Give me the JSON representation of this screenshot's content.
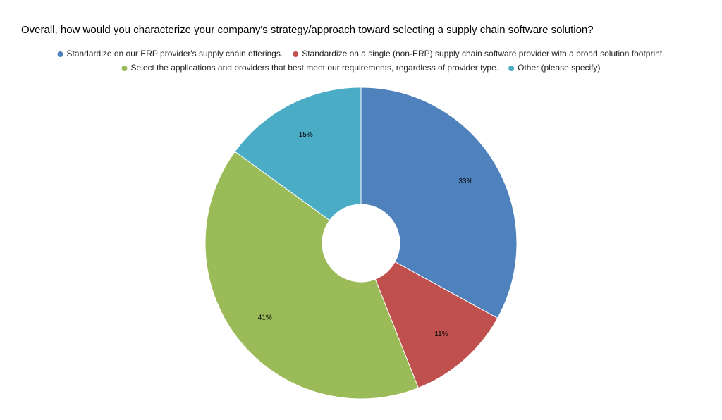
{
  "chart_data": {
    "type": "pie",
    "title": "Overall, how would you characterize your company's strategy/approach toward selecting a supply chain software solution?",
    "categories": [
      "Standardize on our ERP provider's supply chain offerings.",
      "Standardize on a single (non-ERP) supply chain software provider with a broad solution footprint.",
      "Select the applications and providers that best meet our requirements, regardless of provider type.",
      "Other (please specify)"
    ],
    "values": [
      33,
      11,
      41,
      15
    ],
    "value_labels": [
      "33%",
      "11%",
      "41%",
      "15%"
    ],
    "colors": [
      "#4f81bd",
      "#c0504d",
      "#9bbb59",
      "#4bacc6"
    ],
    "legend": "top"
  }
}
